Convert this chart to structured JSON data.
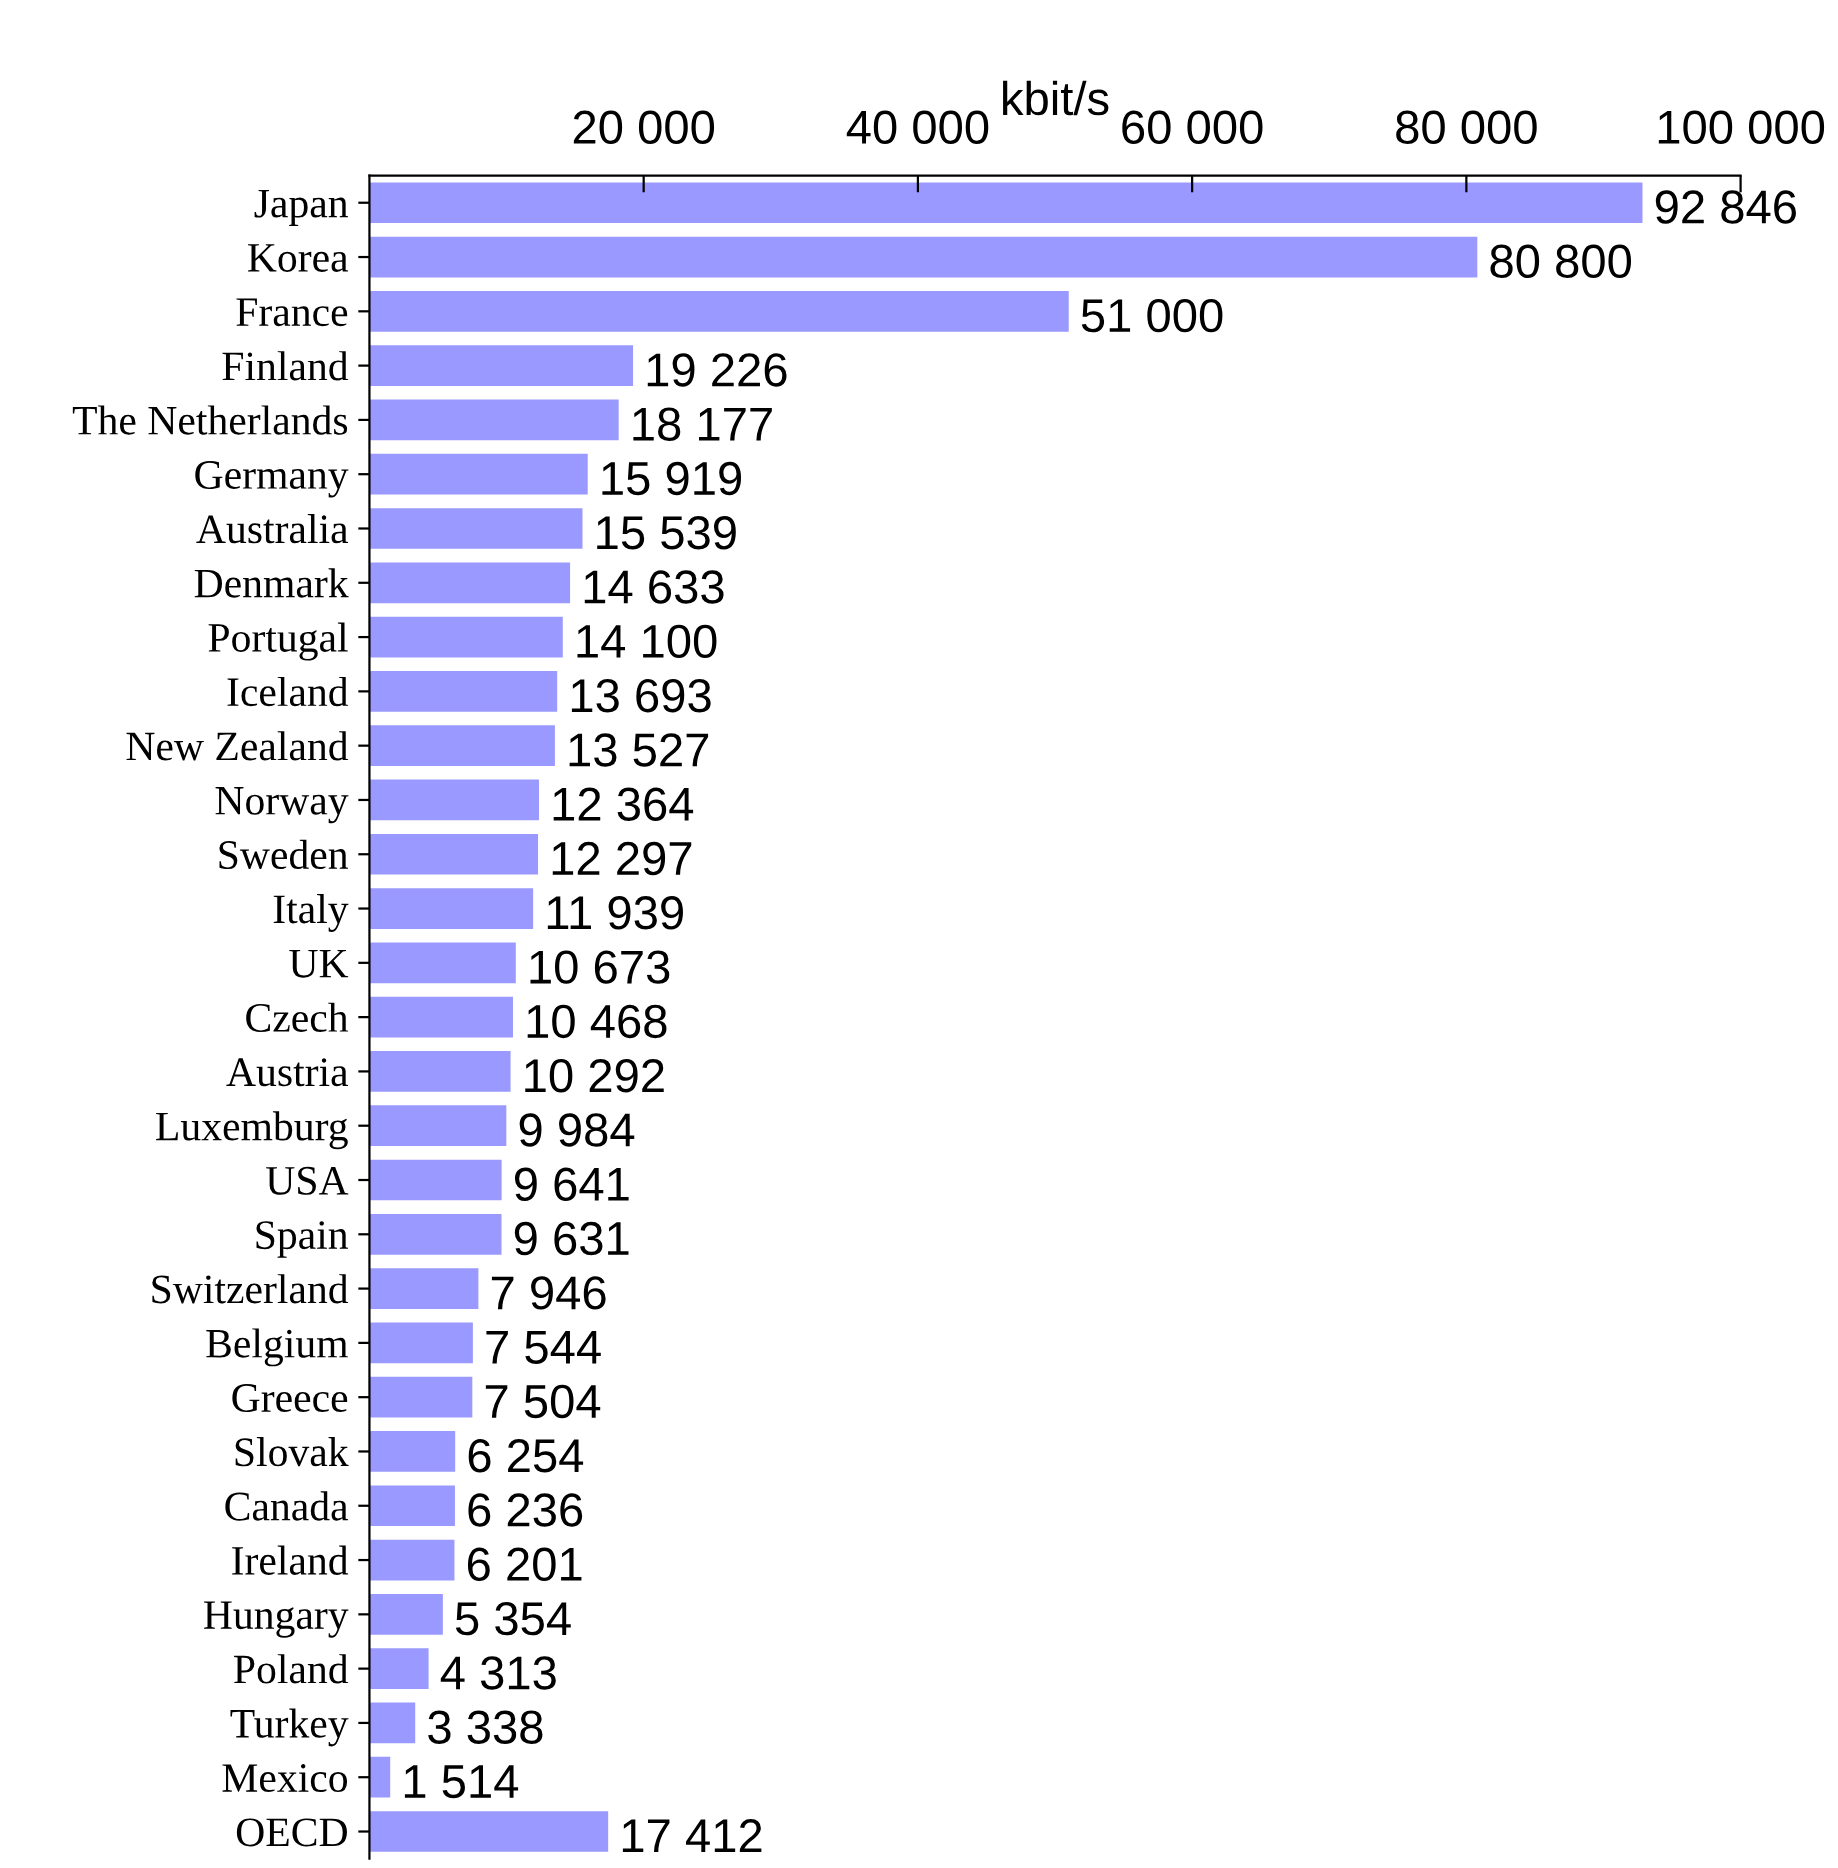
{
  "chart_data": {
    "type": "bar",
    "orientation": "horizontal",
    "xlabel": "kbit/s",
    "categories": [
      "Japan",
      "Korea",
      "France",
      "Finland",
      "The Netherlands",
      "Germany",
      "Australia",
      "Denmark",
      "Portugal",
      "Iceland",
      "New Zealand",
      "Norway",
      "Sweden",
      "Italy",
      "UK",
      "Czech",
      "Austria",
      "Luxemburg",
      "USA",
      "Spain",
      "Switzerland",
      "Belgium",
      "Greece",
      "Slovak",
      "Canada",
      "Ireland",
      "Hungary",
      "Poland",
      "Turkey",
      "Mexico",
      "OECD"
    ],
    "values": [
      92846,
      80800,
      51000,
      19226,
      18177,
      15919,
      15539,
      14633,
      14100,
      13693,
      13527,
      12364,
      12297,
      11939,
      10673,
      10468,
      10292,
      9984,
      9641,
      9631,
      7946,
      7544,
      7504,
      6254,
      6236,
      6201,
      5354,
      4313,
      3338,
      1514,
      17412
    ],
    "value_labels": [
      "92 846",
      "80 800",
      "51 000",
      "19 226",
      "18 177",
      "15 919",
      "15 539",
      "14 633",
      "14 100",
      "13 693",
      "13 527",
      "12 364",
      "12 297",
      "11 939",
      "10 673",
      "10 468",
      "10 292",
      "9 984",
      "9 641",
      "9 631",
      "7 946",
      "7 544",
      "7 504",
      "6 254",
      "6 236",
      "6 201",
      "5 354",
      "4 313",
      "3 338",
      "1 514",
      "17 412"
    ],
    "color": "#9999ff",
    "xlim": [
      0,
      100000
    ],
    "xticks": [
      {
        "value": 20000,
        "label": "20 000"
      },
      {
        "value": 40000,
        "label": "40 000"
      },
      {
        "value": 60000,
        "label": "60 000"
      },
      {
        "value": 80000,
        "label": "80 000"
      },
      {
        "value": 100000,
        "label": "100 000"
      }
    ],
    "grid": false,
    "legend": false
  }
}
